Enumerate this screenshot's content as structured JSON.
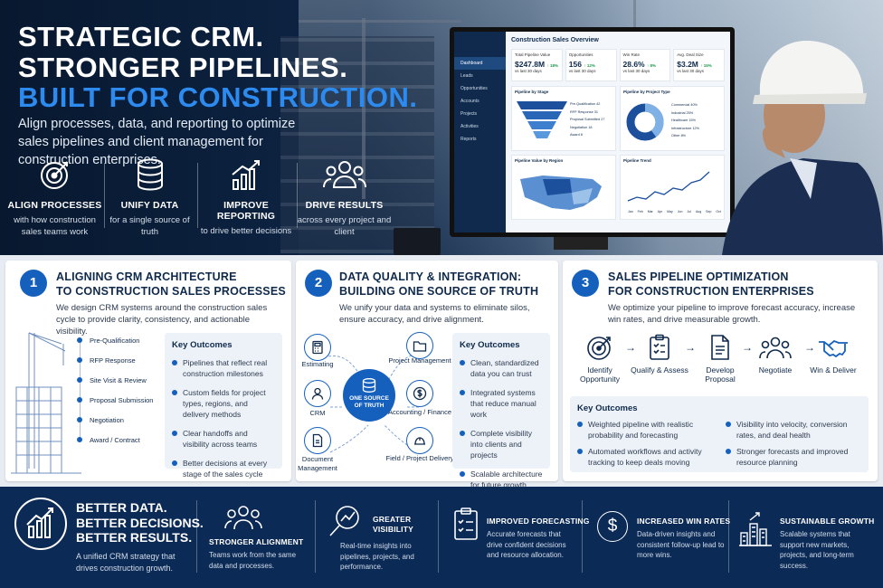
{
  "hero": {
    "line1": "STRATEGIC CRM.",
    "line2": "STRONGER PIPELINES.",
    "line3": "BUILT FOR CONSTRUCTION.",
    "subtitle": "Align processes, data, and reporting to optimize sales pipelines and client management for construction enterprises.",
    "pillars": [
      {
        "icon": "target-icon",
        "title": "ALIGN PROCESSES",
        "desc": "with how construction sales teams work"
      },
      {
        "icon": "database-icon",
        "title": "UNIFY DATA",
        "desc": "for a single source of truth"
      },
      {
        "icon": "bar-chart-icon",
        "title": "IMPROVE REPORTING",
        "desc": "to drive better decisions"
      },
      {
        "icon": "people-icon",
        "title": "DRIVE RESULTS",
        "desc": "across every project and client"
      }
    ]
  },
  "dashboard": {
    "title": "Construction Sales Overview",
    "nav": [
      "Dashboard",
      "Leads",
      "Opportunities",
      "Accounts",
      "Projects",
      "Activities",
      "Reports"
    ],
    "kpis": [
      {
        "label": "Total Pipeline Value",
        "value": "$247.8M",
        "change": "↑ 18%",
        "sub": "vs last 30 days"
      },
      {
        "label": "Opportunities",
        "value": "156",
        "change": "↑ 12%",
        "sub": "vs last 30 days"
      },
      {
        "label": "Win Rate",
        "value": "28.6%",
        "change": "↑ 8%",
        "sub": "vs last 30 days"
      },
      {
        "label": "Avg. Deal Size",
        "value": "$3.2M",
        "change": "↑ 15%",
        "sub": "vs last 30 days"
      }
    ],
    "panels": [
      "Pipeline by Stage",
      "Pipeline by Project Type",
      "Pipeline Value by Region",
      "Pipeline Trend"
    ],
    "stages": [
      {
        "name": "Pre-Qualification",
        "count": "42"
      },
      {
        "name": "RFP Response",
        "count": "31"
      },
      {
        "name": "Proposal Submitted",
        "count": "27"
      },
      {
        "name": "Negotiation",
        "count": "18"
      },
      {
        "name": "Award",
        "count": "8"
      }
    ],
    "project_types": [
      {
        "name": "Commercial",
        "pct": "40%"
      },
      {
        "name": "Industrial",
        "pct": "25%"
      },
      {
        "name": "Healthcare",
        "pct": "15%"
      },
      {
        "name": "Infrastructure",
        "pct": "12%"
      },
      {
        "name": "Other",
        "pct": "8%"
      }
    ],
    "trend_months": [
      "Jan",
      "Feb",
      "Mar",
      "Apr",
      "May",
      "Jun",
      "Jul",
      "Aug",
      "Sep",
      "Oct"
    ]
  },
  "card1": {
    "number": "1",
    "title_l1": "ALIGNING CRM ARCHITECTURE",
    "title_l2": "TO CONSTRUCTION SALES PROCESSES",
    "desc": "We design CRM systems around the construction sales cycle to provide clarity, consistency, and actionable visibility.",
    "stages": [
      "Pre-Qualification",
      "RFP Response",
      "Site Visit & Review",
      "Proposal Submission",
      "Negotiation",
      "Award / Contract"
    ],
    "outcomes_title": "Key Outcomes",
    "outcomes": [
      "Pipelines that reflect real construction milestones",
      "Custom fields for project types, regions, and delivery methods",
      "Clear handoffs and visibility across teams",
      "Better decisions at every stage of the sales cycle"
    ]
  },
  "card2": {
    "number": "2",
    "title_l1": "DATA QUALITY & INTEGRATION:",
    "title_l2": "BUILDING ONE SOURCE OF TRUTH",
    "desc": "We unify your data and systems to eliminate silos, ensure accuracy, and drive alignment.",
    "core": "ONE SOURCE OF TRUTH",
    "nodes": {
      "estimating": "Estimating",
      "pm": "Project Management",
      "crm": "CRM",
      "accounting": "Accounting / Finance",
      "docs": "Document Management",
      "field": "Field / Project Delivery"
    },
    "outcomes_title": "Key Outcomes",
    "outcomes": [
      "Clean, standardized data you can trust",
      "Integrated systems that reduce manual work",
      "Complete visibility into clients and projects",
      "Scalable architecture for future growth"
    ]
  },
  "card3": {
    "number": "3",
    "title_l1": "SALES PIPELINE OPTIMIZATION",
    "title_l2": "FOR CONSTRUCTION ENTERPRISES",
    "desc": "We optimize your pipeline to improve forecast accuracy, increase win rates, and drive measurable growth.",
    "steps": [
      {
        "icon": "target-icon",
        "label": "Identify Opportunity"
      },
      {
        "icon": "checklist-icon",
        "label": "Qualify & Assess"
      },
      {
        "icon": "document-icon",
        "label": "Develop Proposal"
      },
      {
        "icon": "people-icon",
        "label": "Negotiate"
      },
      {
        "icon": "handshake-icon",
        "label": "Win & Deliver"
      }
    ],
    "outcomes_title": "Key Outcomes",
    "outcomes": [
      "Weighted pipeline with realistic probability and forecasting",
      "Visibility into velocity, conversion rates, and deal health",
      "Automated workflows and activity tracking to keep deals moving",
      "Stronger forecasts and improved resource planning"
    ]
  },
  "footer": {
    "headline": [
      "BETTER DATA.",
      "BETTER DECISIONS.",
      "BETTER RESULTS."
    ],
    "tagline": "A unified CRM strategy that drives construction growth.",
    "items": [
      {
        "icon": "people-icon",
        "title": "STRONGER ALIGNMENT",
        "desc": "Teams work from the same data and processes."
      },
      {
        "icon": "magnifier-chart-icon",
        "title": "GREATER VISIBILITY",
        "desc": "Real-time insights into pipelines, projects, and performance."
      },
      {
        "icon": "clipboard-check-icon",
        "title": "IMPROVED FORECASTING",
        "desc": "Accurate forecasts that drive confident decisions and resource allocation."
      },
      {
        "icon": "dollar-coin-icon",
        "title": "INCREASED WIN RATES",
        "desc": "Data-driven insights and consistent follow-up lead to more wins."
      },
      {
        "icon": "city-growth-icon",
        "title": "SUSTAINABLE GROWTH",
        "desc": "Scalable systems that support new markets, projects, and long-term success."
      }
    ]
  },
  "colors": {
    "primary": "#1560bd",
    "navy": "#0c2a56",
    "accent": "#2d8bf0"
  }
}
